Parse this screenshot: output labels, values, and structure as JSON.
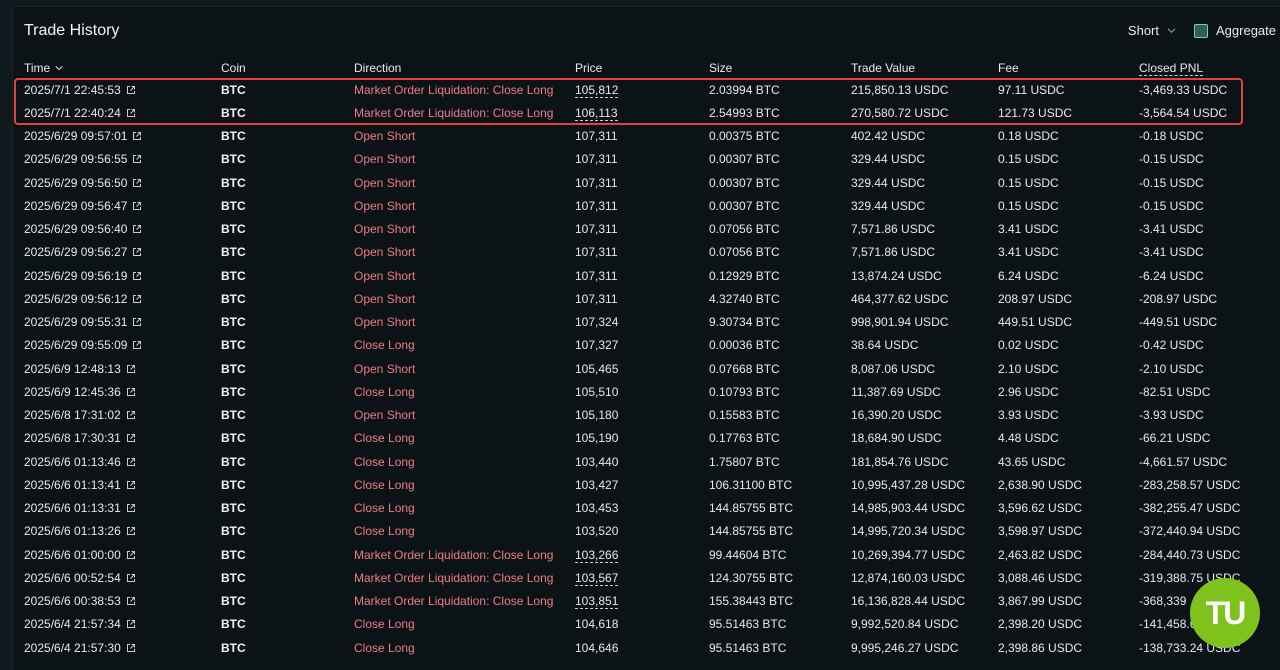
{
  "header": {
    "title": "Trade History",
    "short_label": "Short",
    "aggregate_label": "Aggregate"
  },
  "columns": {
    "time": "Time",
    "coin": "Coin",
    "direction": "Direction",
    "price": "Price",
    "size": "Size",
    "trade_value": "Trade Value",
    "fee": "Fee",
    "closed_pnl": "Closed PNL"
  },
  "rows": [
    {
      "time": "2025/7/1 22:45:53",
      "coin": "BTC",
      "direction": "Market Order Liquidation: Close Long",
      "price": "105,812",
      "size": "2.03994 BTC",
      "trade_value": "215,850.13 USDC",
      "fee": "97.11 USDC",
      "pnl": "-3,469.33 USDC",
      "dashed": true
    },
    {
      "time": "2025/7/1 22:40:24",
      "coin": "BTC",
      "direction": "Market Order Liquidation: Close Long",
      "price": "106,113",
      "size": "2.54993 BTC",
      "trade_value": "270,580.72 USDC",
      "fee": "121.73 USDC",
      "pnl": "-3,564.54 USDC",
      "dashed": true
    },
    {
      "time": "2025/6/29 09:57:01",
      "coin": "BTC",
      "direction": "Open Short",
      "price": "107,311",
      "size": "0.00375 BTC",
      "trade_value": "402.42 USDC",
      "fee": "0.18 USDC",
      "pnl": "-0.18 USDC",
      "dashed": false
    },
    {
      "time": "2025/6/29 09:56:55",
      "coin": "BTC",
      "direction": "Open Short",
      "price": "107,311",
      "size": "0.00307 BTC",
      "trade_value": "329.44 USDC",
      "fee": "0.15 USDC",
      "pnl": "-0.15 USDC",
      "dashed": false
    },
    {
      "time": "2025/6/29 09:56:50",
      "coin": "BTC",
      "direction": "Open Short",
      "price": "107,311",
      "size": "0.00307 BTC",
      "trade_value": "329.44 USDC",
      "fee": "0.15 USDC",
      "pnl": "-0.15 USDC",
      "dashed": false
    },
    {
      "time": "2025/6/29 09:56:47",
      "coin": "BTC",
      "direction": "Open Short",
      "price": "107,311",
      "size": "0.00307 BTC",
      "trade_value": "329.44 USDC",
      "fee": "0.15 USDC",
      "pnl": "-0.15 USDC",
      "dashed": false
    },
    {
      "time": "2025/6/29 09:56:40",
      "coin": "BTC",
      "direction": "Open Short",
      "price": "107,311",
      "size": "0.07056 BTC",
      "trade_value": "7,571.86 USDC",
      "fee": "3.41 USDC",
      "pnl": "-3.41 USDC",
      "dashed": false
    },
    {
      "time": "2025/6/29 09:56:27",
      "coin": "BTC",
      "direction": "Open Short",
      "price": "107,311",
      "size": "0.07056 BTC",
      "trade_value": "7,571.86 USDC",
      "fee": "3.41 USDC",
      "pnl": "-3.41 USDC",
      "dashed": false
    },
    {
      "time": "2025/6/29 09:56:19",
      "coin": "BTC",
      "direction": "Open Short",
      "price": "107,311",
      "size": "0.12929 BTC",
      "trade_value": "13,874.24 USDC",
      "fee": "6.24 USDC",
      "pnl": "-6.24 USDC",
      "dashed": false
    },
    {
      "time": "2025/6/29 09:56:12",
      "coin": "BTC",
      "direction": "Open Short",
      "price": "107,311",
      "size": "4.32740 BTC",
      "trade_value": "464,377.62 USDC",
      "fee": "208.97 USDC",
      "pnl": "-208.97 USDC",
      "dashed": false
    },
    {
      "time": "2025/6/29 09:55:31",
      "coin": "BTC",
      "direction": "Open Short",
      "price": "107,324",
      "size": "9.30734 BTC",
      "trade_value": "998,901.94 USDC",
      "fee": "449.51 USDC",
      "pnl": "-449.51 USDC",
      "dashed": false
    },
    {
      "time": "2025/6/29 09:55:09",
      "coin": "BTC",
      "direction": "Close Long",
      "price": "107,327",
      "size": "0.00036 BTC",
      "trade_value": "38.64 USDC",
      "fee": "0.02 USDC",
      "pnl": "-0.42 USDC",
      "dashed": false
    },
    {
      "time": "2025/6/9 12:48:13",
      "coin": "BTC",
      "direction": "Open Short",
      "price": "105,465",
      "size": "0.07668 BTC",
      "trade_value": "8,087.06 USDC",
      "fee": "2.10 USDC",
      "pnl": "-2.10 USDC",
      "dashed": false
    },
    {
      "time": "2025/6/9 12:45:36",
      "coin": "BTC",
      "direction": "Close Long",
      "price": "105,510",
      "size": "0.10793 BTC",
      "trade_value": "11,387.69 USDC",
      "fee": "2.96 USDC",
      "pnl": "-82.51 USDC",
      "dashed": false
    },
    {
      "time": "2025/6/8 17:31:02",
      "coin": "BTC",
      "direction": "Open Short",
      "price": "105,180",
      "size": "0.15583 BTC",
      "trade_value": "16,390.20 USDC",
      "fee": "3.93 USDC",
      "pnl": "-3.93 USDC",
      "dashed": false
    },
    {
      "time": "2025/6/8 17:30:31",
      "coin": "BTC",
      "direction": "Close Long",
      "price": "105,190",
      "size": "0.17763 BTC",
      "trade_value": "18,684.90 USDC",
      "fee": "4.48 USDC",
      "pnl": "-66.21 USDC",
      "dashed": false
    },
    {
      "time": "2025/6/6 01:13:46",
      "coin": "BTC",
      "direction": "Close Long",
      "price": "103,440",
      "size": "1.75807 BTC",
      "trade_value": "181,854.76 USDC",
      "fee": "43.65 USDC",
      "pnl": "-4,661.57 USDC",
      "dashed": false
    },
    {
      "time": "2025/6/6 01:13:41",
      "coin": "BTC",
      "direction": "Close Long",
      "price": "103,427",
      "size": "106.31100 BTC",
      "trade_value": "10,995,437.28 USDC",
      "fee": "2,638.90 USDC",
      "pnl": "-283,258.57 USDC",
      "dashed": false
    },
    {
      "time": "2025/6/6 01:13:31",
      "coin": "BTC",
      "direction": "Close Long",
      "price": "103,453",
      "size": "144.85755 BTC",
      "trade_value": "14,985,903.44 USDC",
      "fee": "3,596.62 USDC",
      "pnl": "-382,255.47 USDC",
      "dashed": false
    },
    {
      "time": "2025/6/6 01:13:26",
      "coin": "BTC",
      "direction": "Close Long",
      "price": "103,520",
      "size": "144.85755 BTC",
      "trade_value": "14,995,720.34 USDC",
      "fee": "3,598.97 USDC",
      "pnl": "-372,440.94 USDC",
      "dashed": false
    },
    {
      "time": "2025/6/6 01:00:00",
      "coin": "BTC",
      "direction": "Market Order Liquidation: Close Long",
      "price": "103,266",
      "size": "99.44604 BTC",
      "trade_value": "10,269,394.77 USDC",
      "fee": "2,463.82 USDC",
      "pnl": "-284,440.73 USDC",
      "dashed": true
    },
    {
      "time": "2025/6/6 00:52:54",
      "coin": "BTC",
      "direction": "Market Order Liquidation: Close Long",
      "price": "103,567",
      "size": "124.30755 BTC",
      "trade_value": "12,874,160.03 USDC",
      "fee": "3,088.46 USDC",
      "pnl": "-319,388.75 USDC",
      "dashed": true
    },
    {
      "time": "2025/6/6 00:38:53",
      "coin": "BTC",
      "direction": "Market Order Liquidation: Close Long",
      "price": "103,851",
      "size": "155.38443 BTC",
      "trade_value": "16,136,828.44 USDC",
      "fee": "3,867.99 USDC",
      "pnl": "-368,339",
      "dashed": true
    },
    {
      "time": "2025/6/4 21:57:34",
      "coin": "BTC",
      "direction": "Close Long",
      "price": "104,618",
      "size": "95.51463 BTC",
      "trade_value": "9,992,520.84 USDC",
      "fee": "2,398.20 USDC",
      "pnl": "-141,458.6",
      "dashed": false
    },
    {
      "time": "2025/6/4 21:57:30",
      "coin": "BTC",
      "direction": "Close Long",
      "price": "104,646",
      "size": "95.51463 BTC",
      "trade_value": "9,995,246.27 USDC",
      "fee": "2,398.86 USDC",
      "pnl": "-138,733.24 USDC",
      "dashed": false
    }
  ],
  "watermark": {
    "text": "TU",
    "color": "#7fc11d"
  },
  "colors": {
    "direction": "#ee7b86",
    "highlight": "#e2433b",
    "accent": "#6fd2c3"
  }
}
